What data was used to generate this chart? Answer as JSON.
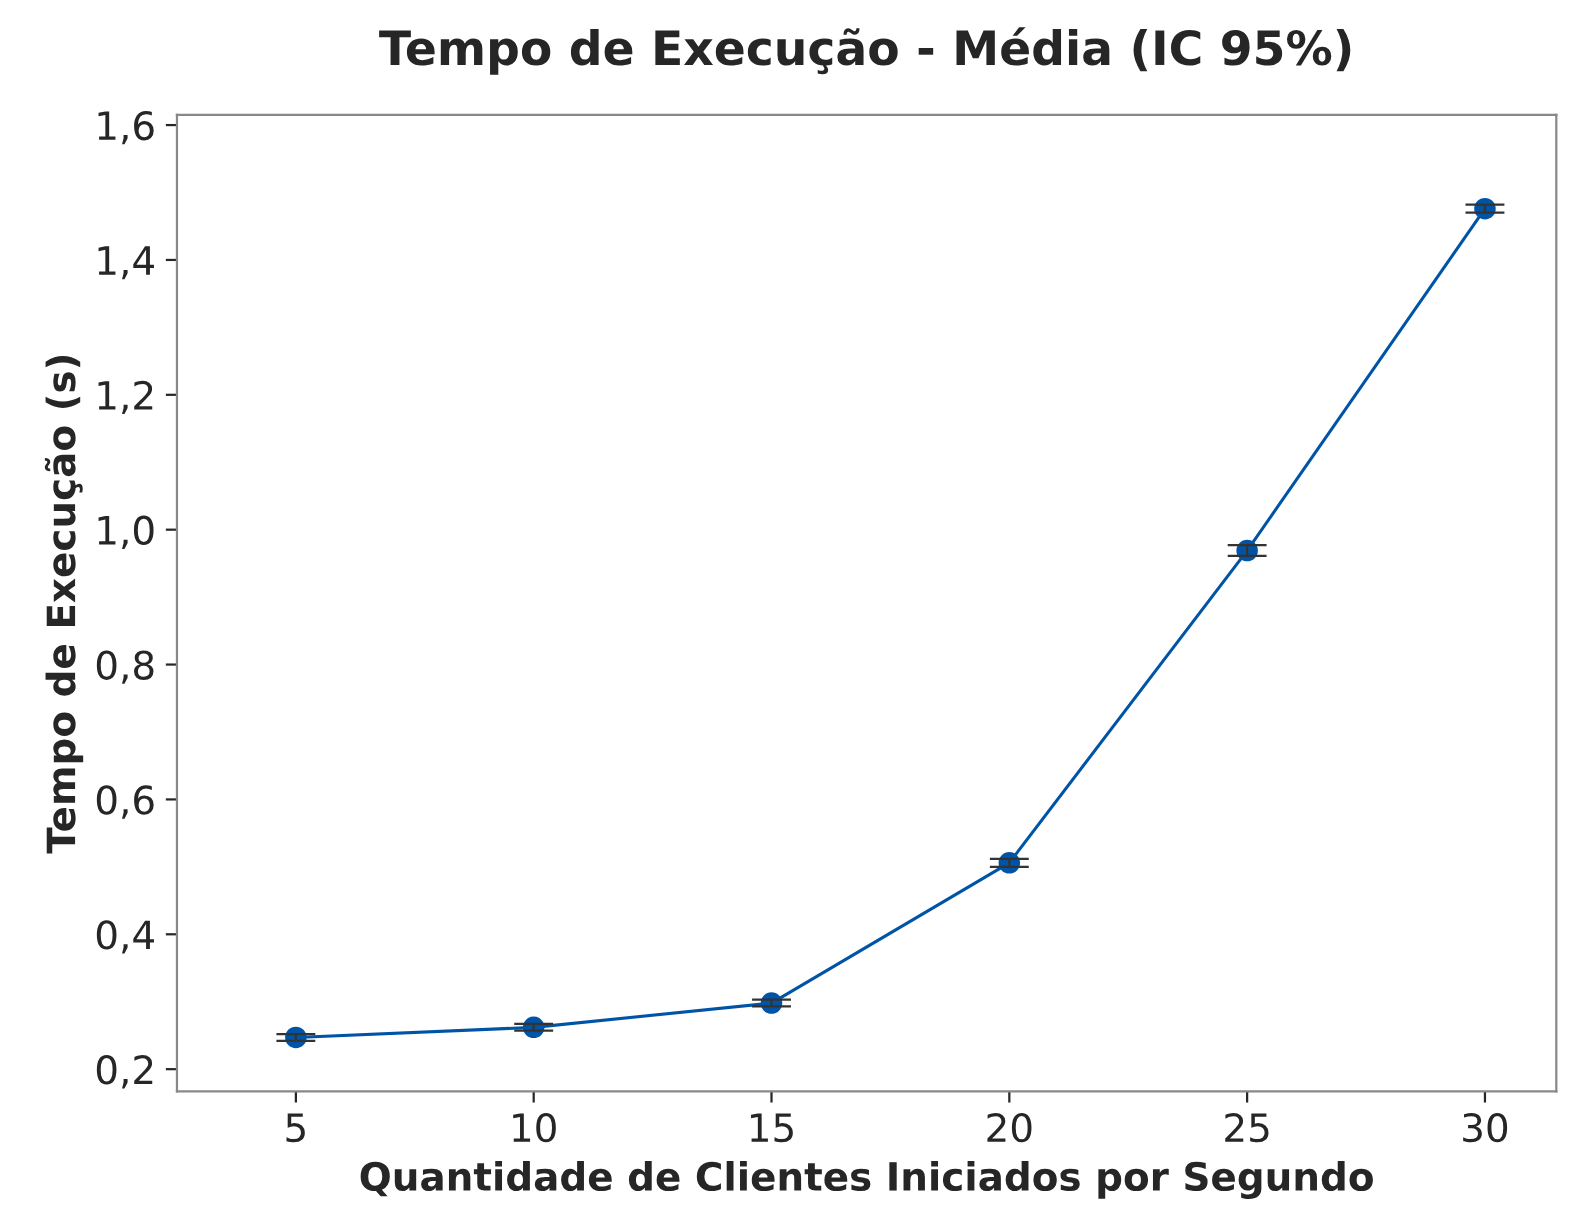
{
  "chart_data": {
    "type": "line",
    "title": "Tempo de Execução - Média (IC 95%)",
    "xlabel": "Quantidade de Clientes Iniciados por Segundo",
    "ylabel": "Tempo de Execução (s)",
    "x": [
      5,
      10,
      15,
      20,
      25,
      30
    ],
    "series": [
      {
        "color": "#0054a6",
        "values": [
          0.247,
          0.262,
          0.298,
          0.506,
          0.969,
          1.476
        ],
        "errors": [
          0.005,
          0.005,
          0.005,
          0.006,
          0.008,
          0.006
        ]
      }
    ],
    "xlim": [
      2.5,
      31.5
    ],
    "xticks": [
      5,
      10,
      15,
      20,
      25,
      30
    ],
    "ylim": [
      0.167,
      1.615
    ],
    "yticks": [
      {
        "value": 0.2,
        "label": "0,2"
      },
      {
        "value": 0.4,
        "label": "0,4"
      },
      {
        "value": 0.6,
        "label": "0,6"
      },
      {
        "value": 0.8,
        "label": "0,8"
      },
      {
        "value": 1.0,
        "label": "1,0"
      },
      {
        "value": 1.2,
        "label": "1,2"
      },
      {
        "value": 1.4,
        "label": "1,4"
      },
      {
        "value": 1.6,
        "label": "1,6"
      }
    ],
    "marker": "circle",
    "line_style": "solid",
    "grid": false,
    "legend": false
  }
}
